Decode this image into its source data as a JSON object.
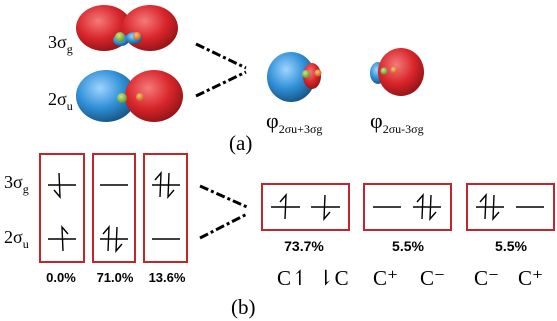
{
  "panel_a": {
    "label": "(a)",
    "orbitals": [
      "3σ",
      "2σ"
    ],
    "orbital_subscripts": [
      "g",
      "u"
    ],
    "combined": [
      {
        "base": "φ",
        "sub": "2σu+3σg"
      },
      {
        "base": "φ",
        "sub": "2σu-3σg"
      }
    ]
  },
  "panel_b": {
    "label": "(b)",
    "rows": [
      "3σ",
      "2σ"
    ],
    "row_subscripts": [
      "g",
      "u"
    ],
    "config_percents": [
      "0.0%",
      "71.0%",
      "13.6%"
    ],
    "resonance_percents": [
      "73.7%",
      "5.5%",
      "5.5%"
    ],
    "charge_labels": [
      [
        "C↿",
        "⇂C"
      ],
      [
        "C⁺",
        "C⁻"
      ],
      [
        "C⁻",
        "C⁺"
      ]
    ]
  },
  "colors": {
    "box_border": "#c0272d",
    "lobe_red": "#d8262b",
    "lobe_blue": "#2f8fd6",
    "atom_green": "#7cae3a",
    "atom_orange": "#e2741e"
  }
}
